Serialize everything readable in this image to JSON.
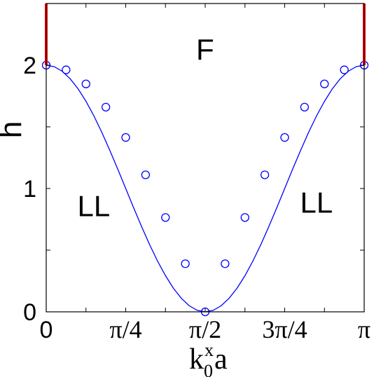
{
  "chart_data": {
    "type": "line",
    "title": "",
    "xlabel": {
      "base": "k",
      "subscript": "0",
      "superscript": "x",
      "suffix": "a"
    },
    "ylabel": "h",
    "xlim": [
      0,
      3.14159265
    ],
    "ylim": [
      0,
      2.5
    ],
    "x_ticks": [
      {
        "value": 0,
        "label": "0"
      },
      {
        "value": 0.785398,
        "label": "π/4"
      },
      {
        "value": 1.570796,
        "label": "π/2"
      },
      {
        "value": 2.356194,
        "label": "3π/4"
      },
      {
        "value": 3.141593,
        "label": "π"
      }
    ],
    "x_minor_ticks": [
      0.392699,
      1.178097,
      1.963495,
      2.748894
    ],
    "y_ticks": [
      {
        "value": 0,
        "label": "0"
      },
      {
        "value": 1,
        "label": "1"
      },
      {
        "value": 2,
        "label": "2"
      }
    ],
    "y_minor_ticks": [
      0.5,
      1.5
    ],
    "grid": false,
    "series": [
      {
        "style": "line",
        "color": "#0000ff",
        "x": [
          0,
          0.0785,
          0.1571,
          0.2356,
          0.3142,
          0.3927,
          0.4712,
          0.5498,
          0.6283,
          0.7069,
          0.7854,
          0.8639,
          0.9425,
          1.021,
          1.0996,
          1.1781,
          1.2566,
          1.3352,
          1.4137,
          1.4923,
          1.5708,
          1.6493,
          1.7279,
          1.8064,
          1.885,
          1.9635,
          2.042,
          2.1206,
          2.1991,
          2.2777,
          2.3562,
          2.4347,
          2.5133,
          2.5918,
          2.6704,
          2.7489,
          2.8274,
          2.906,
          2.9845,
          3.0631,
          3.1416
        ],
        "y": [
          2.0,
          1.988,
          1.951,
          1.891,
          1.809,
          1.707,
          1.588,
          1.454,
          1.309,
          1.156,
          1.0,
          0.844,
          0.691,
          0.546,
          0.412,
          0.293,
          0.191,
          0.109,
          0.049,
          0.012,
          0.0,
          0.012,
          0.049,
          0.109,
          0.191,
          0.293,
          0.412,
          0.546,
          0.691,
          0.844,
          1.0,
          1.156,
          1.309,
          1.454,
          1.588,
          1.707,
          1.809,
          1.891,
          1.951,
          1.988,
          2.0
        ]
      },
      {
        "style": "markers",
        "marker": "circle-open",
        "color": "#0000ff",
        "x": [
          0,
          0.1963,
          0.3927,
          0.589,
          0.7854,
          0.9817,
          1.1781,
          1.3744,
          1.5708,
          1.7671,
          1.9635,
          2.1598,
          2.3562,
          2.5525,
          2.7489,
          2.9452,
          3.1416
        ],
        "y": [
          2.0,
          1.962,
          1.848,
          1.66,
          1.414,
          1.111,
          0.765,
          0.39,
          0.0,
          0.39,
          0.765,
          1.111,
          1.414,
          1.66,
          1.848,
          1.962,
          2.0
        ]
      },
      {
        "style": "segment",
        "color": "#ff0000",
        "x": [
          0,
          0
        ],
        "y": [
          2.0,
          2.5
        ]
      },
      {
        "style": "segment",
        "color": "#ff0000",
        "x": [
          3.141593,
          3.141593
        ],
        "y": [
          2.0,
          2.5
        ]
      }
    ],
    "annotations": [
      {
        "text": "F",
        "x": 1.57,
        "y": 2.13
      },
      {
        "text": "LL",
        "x": 0.47,
        "y": 0.86
      },
      {
        "text": "LL",
        "x": 2.67,
        "y": 0.89
      }
    ]
  }
}
